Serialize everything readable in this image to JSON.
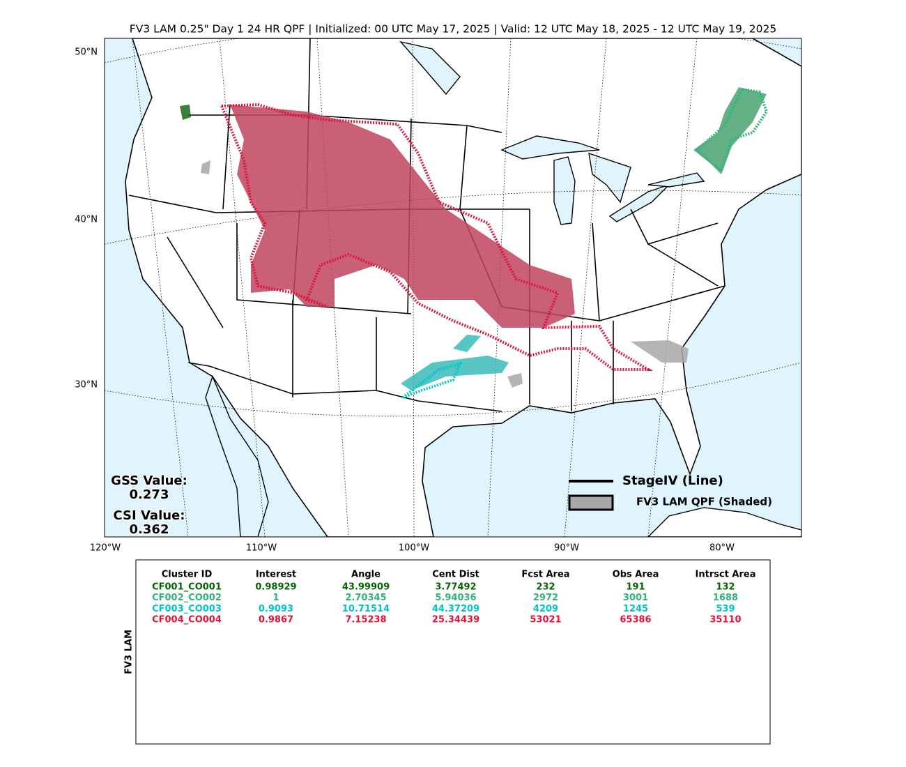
{
  "title": "FV3 LAM 0.25\" Day 1 24 HR QPF | Initialized: 00 UTC May 17, 2025 | Valid: 12 UTC May 18, 2025 - 12 UTC May 19, 2025",
  "map": {
    "lat_labels": [
      "50°N",
      "40°N",
      "30°N"
    ],
    "lon_labels": [
      "120°W",
      "110°W",
      "100°W",
      "90°W",
      "80°W"
    ],
    "scores": {
      "gss_label": "GSS Value:",
      "gss": "0.273",
      "csi_label": "CSI Value:",
      "csi": "0.362"
    },
    "legend": [
      "StageIV (Line)",
      "FV3 LAM QPF (Shaded)"
    ]
  },
  "table": {
    "side_label": "FV3 LAM",
    "columns": [
      "Cluster ID",
      "Interest",
      "Angle",
      "Cent Dist",
      "Fcst Area",
      "Obs Area",
      "Intrsct Area"
    ],
    "rows": [
      {
        "color": "#006400",
        "cells": [
          "CF001_CO001",
          "0.98929",
          "43.99909",
          "3.77492",
          "232",
          "191",
          "132"
        ]
      },
      {
        "color": "#2fb47a",
        "cells": [
          "CF002_CO002",
          "1",
          "2.70345",
          "5.94036",
          "2972",
          "3001",
          "1688"
        ]
      },
      {
        "color": "#00c5cd",
        "cells": [
          "CF003_CO003",
          "0.9093",
          "10.71514",
          "44.37209",
          "4209",
          "1245",
          "539"
        ]
      },
      {
        "color": "#dc143c",
        "cells": [
          "CF004_CO004",
          "0.9867",
          "7.15238",
          "25.34439",
          "53021",
          "65386",
          "35110"
        ]
      }
    ]
  }
}
